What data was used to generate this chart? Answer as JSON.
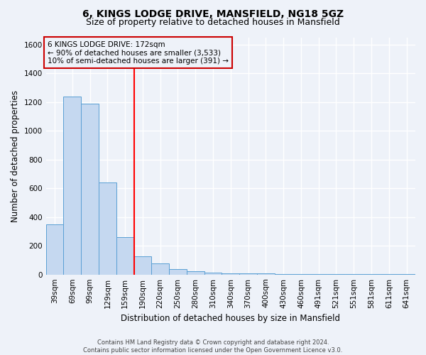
{
  "title": "6, KINGS LODGE DRIVE, MANSFIELD, NG18 5GZ",
  "subtitle": "Size of property relative to detached houses in Mansfield",
  "xlabel": "Distribution of detached houses by size in Mansfield",
  "ylabel": "Number of detached properties",
  "bar_labels": [
    "39sqm",
    "69sqm",
    "99sqm",
    "129sqm",
    "159sqm",
    "190sqm",
    "220sqm",
    "250sqm",
    "280sqm",
    "310sqm",
    "340sqm",
    "370sqm",
    "400sqm",
    "430sqm",
    "460sqm",
    "491sqm",
    "521sqm",
    "551sqm",
    "581sqm",
    "611sqm",
    "641sqm"
  ],
  "bar_values": [
    350,
    1240,
    1190,
    640,
    260,
    125,
    75,
    37,
    22,
    13,
    10,
    8,
    7,
    5,
    4,
    3,
    2,
    2,
    2,
    1,
    2
  ],
  "bar_color": "#c5d8f0",
  "bar_edgecolor": "#5a9fd4",
  "red_line_x": 4.5,
  "annotation_text": "6 KINGS LODGE DRIVE: 172sqm\n← 90% of detached houses are smaller (3,533)\n10% of semi-detached houses are larger (391) →",
  "annotation_box_edgecolor": "#cc0000",
  "background_color": "#eef2f9",
  "grid_color": "#ffffff",
  "ylim": [
    0,
    1650
  ],
  "yticks": [
    0,
    200,
    400,
    600,
    800,
    1000,
    1200,
    1400,
    1600
  ],
  "footnote": "Contains HM Land Registry data © Crown copyright and database right 2024.\nContains public sector information licensed under the Open Government Licence v3.0.",
  "title_fontsize": 10,
  "subtitle_fontsize": 9,
  "ylabel_fontsize": 8.5,
  "xlabel_fontsize": 8.5,
  "tick_fontsize": 7.5
}
